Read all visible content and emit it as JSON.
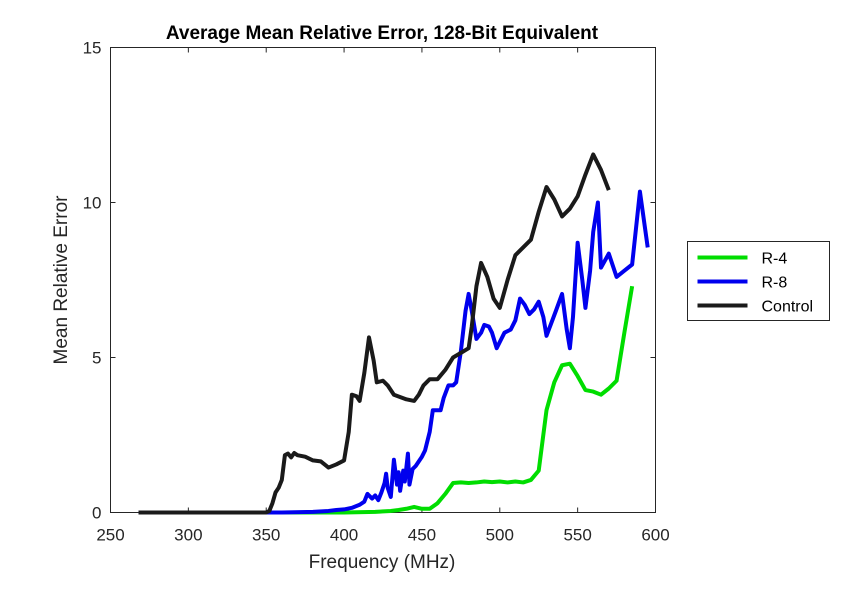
{
  "chart_data": {
    "type": "line",
    "title": "Average Mean Relative Error, 128-Bit Equivalent",
    "xlabel": "Frequency (MHz)",
    "ylabel": "Mean Relative Error",
    "xlim": [
      250,
      600
    ],
    "ylim": [
      0,
      15
    ],
    "xticks": [
      250,
      300,
      350,
      400,
      450,
      500,
      550,
      600
    ],
    "yticks": [
      0,
      5,
      10,
      15
    ],
    "xtick_labels": [
      "250",
      "300",
      "350",
      "400",
      "450",
      "500",
      "550",
      "600"
    ],
    "ytick_labels": [
      "0",
      "5",
      "10",
      "15"
    ],
    "grid": false,
    "legend_position": "right-outside",
    "series": [
      {
        "name": "R-4",
        "color": "#00dd00",
        "points": [
          [
            268,
            0
          ],
          [
            350,
            0
          ],
          [
            400,
            0
          ],
          [
            420,
            0.02
          ],
          [
            430,
            0.05
          ],
          [
            435,
            0.08
          ],
          [
            440,
            0.12
          ],
          [
            445,
            0.18
          ],
          [
            450,
            0.12
          ],
          [
            455,
            0.12
          ],
          [
            460,
            0.3
          ],
          [
            465,
            0.6
          ],
          [
            470,
            0.95
          ],
          [
            475,
            0.97
          ],
          [
            480,
            0.95
          ],
          [
            485,
            0.97
          ],
          [
            490,
            1.0
          ],
          [
            495,
            0.98
          ],
          [
            500,
            1.0
          ],
          [
            505,
            0.97
          ],
          [
            510,
            1.0
          ],
          [
            515,
            0.97
          ],
          [
            520,
            1.05
          ],
          [
            525,
            1.35
          ],
          [
            530,
            3.3
          ],
          [
            535,
            4.2
          ],
          [
            540,
            4.75
          ],
          [
            545,
            4.8
          ],
          [
            550,
            4.4
          ],
          [
            555,
            3.95
          ],
          [
            560,
            3.9
          ],
          [
            565,
            3.8
          ],
          [
            570,
            4.0
          ],
          [
            575,
            4.25
          ],
          [
            580,
            5.8
          ],
          [
            585,
            7.3
          ]
        ]
      },
      {
        "name": "R-8",
        "color": "#0000ee",
        "points": [
          [
            268,
            0
          ],
          [
            340,
            0
          ],
          [
            360,
            0
          ],
          [
            380,
            0.02
          ],
          [
            390,
            0.05
          ],
          [
            395,
            0.08
          ],
          [
            400,
            0.1
          ],
          [
            405,
            0.15
          ],
          [
            410,
            0.25
          ],
          [
            413,
            0.35
          ],
          [
            415,
            0.6
          ],
          [
            418,
            0.45
          ],
          [
            420,
            0.55
          ],
          [
            422,
            0.4
          ],
          [
            424,
            0.65
          ],
          [
            426,
            0.95
          ],
          [
            427,
            1.25
          ],
          [
            428,
            0.8
          ],
          [
            430,
            0.5
          ],
          [
            432,
            1.7
          ],
          [
            434,
            0.9
          ],
          [
            435,
            1.3
          ],
          [
            436,
            0.7
          ],
          [
            438,
            1.35
          ],
          [
            439,
            1.0
          ],
          [
            441,
            1.9
          ],
          [
            442,
            0.9
          ],
          [
            444,
            1.4
          ],
          [
            446,
            1.5
          ],
          [
            450,
            1.8
          ],
          [
            452,
            2.0
          ],
          [
            455,
            2.6
          ],
          [
            457,
            3.3
          ],
          [
            460,
            3.3
          ],
          [
            462,
            3.3
          ],
          [
            464,
            3.7
          ],
          [
            467,
            4.1
          ],
          [
            470,
            4.1
          ],
          [
            472,
            4.2
          ],
          [
            475,
            5.2
          ],
          [
            478,
            6.5
          ],
          [
            480,
            7.05
          ],
          [
            482,
            6.5
          ],
          [
            485,
            5.6
          ],
          [
            488,
            5.8
          ],
          [
            490,
            6.05
          ],
          [
            493,
            6.0
          ],
          [
            495,
            5.8
          ],
          [
            498,
            5.3
          ],
          [
            500,
            5.5
          ],
          [
            503,
            5.8
          ],
          [
            507,
            5.9
          ],
          [
            510,
            6.2
          ],
          [
            513,
            6.9
          ],
          [
            516,
            6.7
          ],
          [
            519,
            6.4
          ],
          [
            522,
            6.55
          ],
          [
            525,
            6.8
          ],
          [
            528,
            6.3
          ],
          [
            530,
            5.7
          ],
          [
            533,
            6.1
          ],
          [
            536,
            6.5
          ],
          [
            540,
            7.05
          ],
          [
            543,
            5.9
          ],
          [
            545,
            5.3
          ],
          [
            547,
            6.3
          ],
          [
            550,
            8.7
          ],
          [
            553,
            7.5
          ],
          [
            555,
            6.6
          ],
          [
            558,
            7.8
          ],
          [
            560,
            9.05
          ],
          [
            563,
            10.0
          ],
          [
            565,
            7.9
          ],
          [
            570,
            8.35
          ],
          [
            575,
            7.6
          ],
          [
            580,
            7.8
          ],
          [
            585,
            8.0
          ],
          [
            590,
            10.35
          ],
          [
            595,
            8.55
          ]
        ]
      },
      {
        "name": "Control",
        "color": "#1a1a1a",
        "points": [
          [
            268,
            0
          ],
          [
            350,
            0
          ],
          [
            352,
            0.05
          ],
          [
            354,
            0.3
          ],
          [
            356,
            0.65
          ],
          [
            358,
            0.8
          ],
          [
            360,
            1.05
          ],
          [
            362,
            1.85
          ],
          [
            364,
            1.9
          ],
          [
            366,
            1.78
          ],
          [
            368,
            1.92
          ],
          [
            370,
            1.85
          ],
          [
            375,
            1.8
          ],
          [
            380,
            1.68
          ],
          [
            385,
            1.65
          ],
          [
            390,
            1.45
          ],
          [
            395,
            1.55
          ],
          [
            400,
            1.68
          ],
          [
            403,
            2.6
          ],
          [
            405,
            3.8
          ],
          [
            408,
            3.75
          ],
          [
            410,
            3.6
          ],
          [
            413,
            4.5
          ],
          [
            416,
            5.65
          ],
          [
            419,
            4.9
          ],
          [
            421,
            4.2
          ],
          [
            425,
            4.25
          ],
          [
            428,
            4.1
          ],
          [
            432,
            3.8
          ],
          [
            440,
            3.65
          ],
          [
            445,
            3.6
          ],
          [
            448,
            3.8
          ],
          [
            451,
            4.1
          ],
          [
            455,
            4.3
          ],
          [
            460,
            4.3
          ],
          [
            465,
            4.6
          ],
          [
            470,
            5.0
          ],
          [
            475,
            5.15
          ],
          [
            480,
            5.3
          ],
          [
            482,
            6.0
          ],
          [
            485,
            7.3
          ],
          [
            488,
            8.05
          ],
          [
            492,
            7.6
          ],
          [
            496,
            6.9
          ],
          [
            500,
            6.6
          ],
          [
            505,
            7.5
          ],
          [
            510,
            8.3
          ],
          [
            515,
            8.55
          ],
          [
            520,
            8.8
          ],
          [
            525,
            9.7
          ],
          [
            530,
            10.5
          ],
          [
            535,
            10.1
          ],
          [
            540,
            9.55
          ],
          [
            545,
            9.8
          ],
          [
            550,
            10.2
          ],
          [
            555,
            10.9
          ],
          [
            560,
            11.55
          ],
          [
            565,
            11.05
          ],
          [
            570,
            10.4
          ]
        ]
      }
    ]
  }
}
